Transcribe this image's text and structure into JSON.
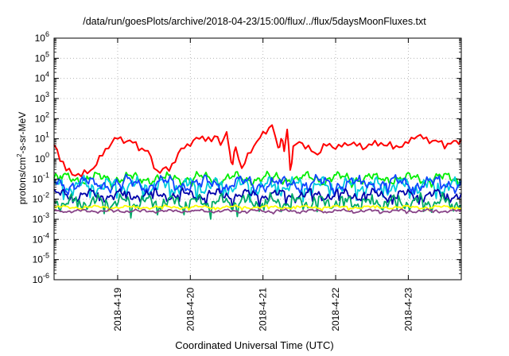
{
  "chart_data": {
    "type": "line",
    "title": "/data/run/goesPlots/archive/2018-04-23/15:00/flux/../flux/5daysMoonFluxes.txt",
    "xlabel": "Coordinated Universal Time (UTC)",
    "ylabel_parts": [
      "protons/cm",
      "2",
      "-s-sr-MeV"
    ],
    "yscale": "log",
    "ylim": [
      1e-06,
      1000000.0
    ],
    "ytick_exponents": [
      -6,
      -5,
      -4,
      -3,
      -2,
      -1,
      0,
      1,
      2,
      3,
      4,
      5,
      6
    ],
    "ytick_base": "10",
    "xlim": [
      "2018-04-18T03:00",
      "2018-04-23T17:30"
    ],
    "xticks": [
      {
        "date": "2018-04-19T00:00",
        "label": "2018-4-19"
      },
      {
        "date": "2018-04-20T00:00",
        "label": "2018-4-20"
      },
      {
        "date": "2018-04-21T00:00",
        "label": "2018-4-21"
      },
      {
        "date": "2018-04-22T00:00",
        "label": "2018-4-22"
      },
      {
        "date": "2018-04-23T00:00",
        "label": "2018-4-23"
      }
    ],
    "grid": true,
    "series": [
      {
        "color": "#ff0000",
        "x": [
          "2018-04-18T03:00",
          "2018-04-18T05:00",
          "2018-04-18T07:00",
          "2018-04-18T09:00",
          "2018-04-18T12:00",
          "2018-04-18T15:00",
          "2018-04-18T18:00",
          "2018-04-18T21:00",
          "2018-04-19T00:00",
          "2018-04-19T04:00",
          "2018-04-19T07:00",
          "2018-04-19T10:00",
          "2018-04-19T13:00",
          "2018-04-19T17:00",
          "2018-04-19T21:00",
          "2018-04-20T02:00",
          "2018-04-20T05:00",
          "2018-04-20T07:00",
          "2018-04-20T09:00",
          "2018-04-20T10:00",
          "2018-04-20T12:00",
          "2018-04-20T13:00",
          "2018-04-20T14:00",
          "2018-04-20T15:00",
          "2018-04-20T17:00",
          "2018-04-20T20:00",
          "2018-04-20T23:00",
          "2018-04-21T03:00",
          "2018-04-21T05:00",
          "2018-04-21T06:00",
          "2018-04-21T07:00",
          "2018-04-21T08:00",
          "2018-04-21T09:00",
          "2018-04-21T10:00",
          "2018-04-21T12:00",
          "2018-04-21T15:00",
          "2018-04-21T18:00",
          "2018-04-21T21:00",
          "2018-04-22T01:00",
          "2018-04-22T05:00",
          "2018-04-22T09:00",
          "2018-04-22T12:00",
          "2018-04-22T15:00",
          "2018-04-22T19:00",
          "2018-04-22T23:00",
          "2018-04-23T02:00",
          "2018-04-23T05:00",
          "2018-04-23T09:00",
          "2018-04-23T12:00",
          "2018-04-23T15:00",
          "2018-04-23T17:30"
        ],
        "y": [
          5,
          1.2,
          0.3,
          0.2,
          0.15,
          0.25,
          1,
          5,
          10,
          8,
          4,
          2,
          0.25,
          0.3,
          3,
          10,
          12,
          8,
          15,
          5,
          20,
          2,
          0.5,
          5,
          0.3,
          3,
          10,
          60,
          3,
          10,
          3,
          30,
          0.3,
          3,
          8,
          3,
          2,
          5,
          4,
          6,
          4,
          5,
          6,
          4,
          5,
          15,
          10,
          8,
          5,
          6,
          9
        ]
      },
      {
        "color": "#00ee00",
        "baseline": 0.11,
        "amp": 0.35,
        "freq": 1.0,
        "phase": 0.0
      },
      {
        "color": "#00ccdd",
        "baseline": 0.045,
        "amp": 0.5,
        "freq": 1.3,
        "phase": 1.1
      },
      {
        "color": "#1144ff",
        "baseline": 0.06,
        "amp": 0.45,
        "freq": 0.9,
        "phase": 2.2
      },
      {
        "color": "#0000aa",
        "baseline": 0.016,
        "amp": 0.35,
        "freq": 1.1,
        "phase": 0.6
      },
      {
        "color": "#00aa66",
        "baseline": 0.007,
        "amp": 0.45,
        "freq": 1.4,
        "phase": 3.0
      },
      {
        "color": "#ffff00",
        "baseline": 0.004,
        "amp": 0.1,
        "freq": 1.0,
        "phase": 0.4
      },
      {
        "color": "#884488",
        "baseline": 0.0026,
        "amp": 0.1,
        "freq": 1.2,
        "phase": 1.7
      }
    ]
  }
}
